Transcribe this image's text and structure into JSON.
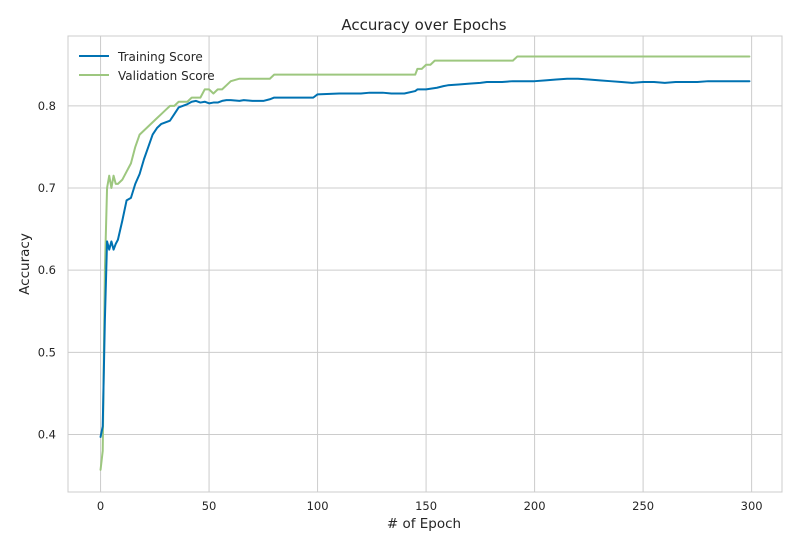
{
  "chart_data": {
    "type": "line",
    "title": "Accuracy over Epochs",
    "xlabel": "# of Epoch",
    "ylabel": "Accuracy",
    "xlim": [
      -15,
      314
    ],
    "ylim": [
      0.33,
      0.885
    ],
    "xticks": [
      0,
      50,
      100,
      150,
      200,
      250,
      300
    ],
    "yticks": [
      0.4,
      0.5,
      0.6,
      0.7,
      0.8
    ],
    "ytick_labels": [
      "0.4",
      "0.5",
      "0.6",
      "0.7",
      "0.8"
    ],
    "xtick_labels": [
      "0",
      "50",
      "100",
      "150",
      "200",
      "250",
      "300"
    ],
    "grid": true,
    "legend_position": "top-left",
    "series": [
      {
        "name": "Training Score",
        "color": "#0072B2",
        "x": [
          0,
          1,
          2,
          3,
          4,
          5,
          6,
          7,
          8,
          10,
          12,
          14,
          16,
          18,
          20,
          22,
          24,
          26,
          28,
          30,
          32,
          34,
          36,
          38,
          40,
          42,
          44,
          46,
          48,
          50,
          52,
          54,
          56,
          58,
          60,
          64,
          66,
          70,
          75,
          78,
          80,
          90,
          98,
          100,
          110,
          120,
          124,
          130,
          134,
          140,
          145,
          146,
          148,
          150,
          155,
          158,
          160,
          165,
          170,
          175,
          178,
          180,
          185,
          190,
          200,
          205,
          210,
          215,
          220,
          225,
          230,
          235,
          240,
          245,
          250,
          255,
          260,
          265,
          270,
          275,
          280,
          285,
          290,
          299
        ],
        "y": [
          0.397,
          0.41,
          0.54,
          0.635,
          0.625,
          0.635,
          0.625,
          0.632,
          0.637,
          0.66,
          0.685,
          0.688,
          0.705,
          0.717,
          0.735,
          0.75,
          0.765,
          0.773,
          0.778,
          0.78,
          0.782,
          0.79,
          0.798,
          0.8,
          0.802,
          0.805,
          0.806,
          0.804,
          0.805,
          0.803,
          0.804,
          0.804,
          0.806,
          0.807,
          0.807,
          0.806,
          0.807,
          0.806,
          0.806,
          0.808,
          0.81,
          0.81,
          0.81,
          0.814,
          0.815,
          0.815,
          0.816,
          0.816,
          0.815,
          0.815,
          0.818,
          0.82,
          0.82,
          0.82,
          0.822,
          0.824,
          0.825,
          0.826,
          0.827,
          0.828,
          0.829,
          0.829,
          0.829,
          0.83,
          0.83,
          0.831,
          0.832,
          0.833,
          0.833,
          0.832,
          0.831,
          0.83,
          0.829,
          0.828,
          0.829,
          0.829,
          0.828,
          0.829,
          0.829,
          0.829,
          0.83,
          0.83,
          0.83,
          0.83
        ]
      },
      {
        "name": "Validation Score",
        "color": "#9DC77F",
        "x": [
          0,
          1,
          2,
          3,
          4,
          5,
          6,
          7,
          8,
          10,
          12,
          14,
          16,
          18,
          20,
          22,
          24,
          26,
          28,
          30,
          32,
          34,
          36,
          38,
          40,
          42,
          44,
          46,
          48,
          50,
          52,
          54,
          56,
          58,
          60,
          64,
          70,
          78,
          80,
          90,
          100,
          110,
          120,
          130,
          140,
          145,
          146,
          148,
          150,
          152,
          154,
          160,
          170,
          180,
          190,
          192,
          200,
          210,
          220,
          230,
          240,
          250,
          260,
          270,
          280,
          290,
          299
        ],
        "y": [
          0.357,
          0.38,
          0.6,
          0.7,
          0.715,
          0.7,
          0.715,
          0.705,
          0.705,
          0.71,
          0.72,
          0.73,
          0.75,
          0.765,
          0.77,
          0.775,
          0.78,
          0.785,
          0.79,
          0.795,
          0.8,
          0.8,
          0.805,
          0.805,
          0.805,
          0.81,
          0.81,
          0.81,
          0.82,
          0.82,
          0.815,
          0.82,
          0.82,
          0.825,
          0.83,
          0.833,
          0.833,
          0.833,
          0.838,
          0.838,
          0.838,
          0.838,
          0.838,
          0.838,
          0.838,
          0.838,
          0.845,
          0.845,
          0.85,
          0.85,
          0.855,
          0.855,
          0.855,
          0.855,
          0.855,
          0.86,
          0.86,
          0.86,
          0.86,
          0.86,
          0.86,
          0.86,
          0.86,
          0.86,
          0.86,
          0.86,
          0.86
        ]
      }
    ]
  }
}
